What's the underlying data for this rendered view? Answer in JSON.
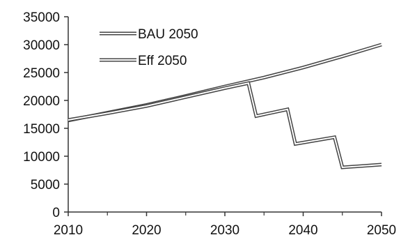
{
  "chart_data": {
    "type": "line",
    "title": "",
    "xlabel": "",
    "ylabel": "",
    "xlim": [
      2010,
      2050
    ],
    "ylim": [
      0,
      35000
    ],
    "x_ticks": [
      "2010",
      "2020",
      "2030",
      "2040",
      "2050"
    ],
    "y_ticks": [
      "0",
      "5000",
      "10000",
      "15000",
      "20000",
      "25000",
      "30000",
      "35000"
    ],
    "grid": false,
    "legend_position": "top-left",
    "series": [
      {
        "name": "BAU 2050",
        "color": "#444444",
        "x": [
          2010,
          2015,
          2020,
          2025,
          2030,
          2035,
          2040,
          2045,
          2050
        ],
        "y": [
          16400,
          17800,
          19200,
          20800,
          22500,
          24100,
          25900,
          27900,
          30000
        ]
      },
      {
        "name": "Eff 2050",
        "color": "#444444",
        "x": [
          2010,
          2015,
          2020,
          2025,
          2030,
          2033,
          2034,
          2038,
          2039,
          2044,
          2045,
          2050
        ],
        "y": [
          16500,
          17700,
          19000,
          20600,
          22200,
          23100,
          17200,
          18400,
          12200,
          13400,
          8000,
          8500
        ]
      }
    ]
  }
}
